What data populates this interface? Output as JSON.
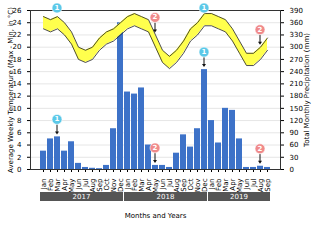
{
  "chart_data": {
    "type": "bar",
    "categories": [
      "Jan",
      "Feb",
      "Mar",
      "Apr",
      "May",
      "Jun",
      "Jul",
      "Aug",
      "Sep",
      "Oct",
      "Nov",
      "Dec",
      "Jan",
      "Feb",
      "Mar",
      "Apr",
      "May",
      "Jun",
      "Jul",
      "Aug",
      "Sep",
      "Oct",
      "Nov",
      "Dec",
      "Jan",
      "Feb",
      "Mar",
      "Apr",
      "May",
      "Jun",
      "Jul",
      "Aug",
      "Sep"
    ],
    "groups": [
      {
        "label": "2017",
        "start": 0,
        "end": 11
      },
      {
        "label": "2018",
        "start": 12,
        "end": 23
      },
      {
        "label": "2019",
        "start": 24,
        "end": 32
      }
    ],
    "xlabel": "Months and Years",
    "ylabel": "Average Weekly Temperature (Max - Min, in °C)",
    "y2label": "Total Monthly Precipitation (mm)",
    "ylim": [
      0,
      26
    ],
    "yticks": [
      0,
      2,
      4,
      6,
      8,
      10,
      12,
      14,
      16,
      18,
      20,
      22,
      24,
      26
    ],
    "y2lim": [
      0,
      390
    ],
    "y2ticks": [
      0,
      30,
      60,
      90,
      120,
      150,
      180,
      210,
      240,
      270,
      300,
      330,
      360,
      390
    ],
    "grid": true,
    "series": [
      {
        "type": "bar",
        "axis": "y2",
        "color": "#3d72c8",
        "values": [
          45,
          75,
          80,
          45,
          68,
          15,
          5,
          3,
          2,
          10,
          100,
          360,
          190,
          185,
          200,
          60,
          10,
          10,
          5,
          40,
          85,
          55,
          100,
          245,
          120,
          65,
          150,
          145,
          75,
          5,
          5,
          8,
          5
        ]
      },
      {
        "type": "area",
        "color": "#ffff4d",
        "low": [
          23,
          22.5,
          23,
          22,
          20.5,
          18,
          17.5,
          18,
          19.5,
          20.5,
          21,
          22,
          23,
          23.5,
          23,
          22.5,
          20,
          17.5,
          16.5,
          17.5,
          19,
          21,
          22,
          23.5,
          23.5,
          23,
          22.5,
          21,
          19,
          17,
          17,
          18,
          19.5
        ],
        "high": [
          25,
          24.5,
          25,
          24,
          22.5,
          20,
          19.5,
          20,
          21.5,
          22.5,
          23,
          24,
          25,
          25.5,
          25,
          24.5,
          22,
          19.5,
          18.5,
          19.5,
          21,
          23,
          24,
          25.5,
          25.5,
          25,
          24.5,
          23,
          21,
          19,
          19,
          20,
          21.5
        ]
      }
    ],
    "annotations": [
      {
        "text": "1",
        "index": 2,
        "color": "#5bc8e8"
      },
      {
        "text": "2",
        "index": 16,
        "color": "#f08a8a"
      },
      {
        "text": "1",
        "index": 23,
        "color": "#5bc8e8"
      },
      {
        "text": "2",
        "index": 31,
        "color": "#f08a8a"
      }
    ]
  }
}
